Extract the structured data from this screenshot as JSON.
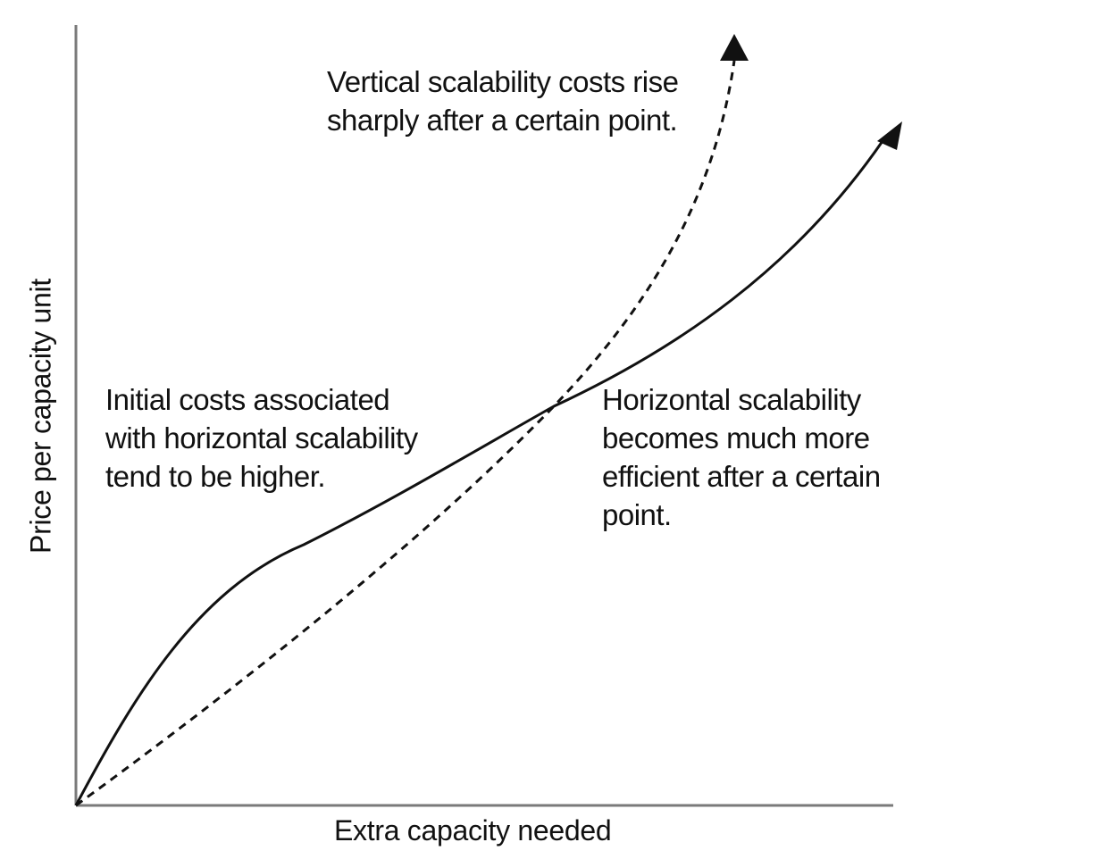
{
  "axes": {
    "x_label": "Extra capacity needed",
    "y_label": "Price per capacity unit"
  },
  "annotations": {
    "vertical": {
      "line1": "Vertical scalability costs rise",
      "line2": "sharply after a certain point."
    },
    "horizontal_initial": {
      "line1": "Initial costs associated",
      "line2": "with horizontal scalability",
      "line3": "tend to be higher."
    },
    "horizontal_efficient": {
      "line1": "Horizontal scalability",
      "line2": "becomes much more",
      "line3": "efficient after a certain",
      "line4": "point."
    }
  },
  "curves": {
    "horizontal": {
      "style": "solid",
      "color": "#111111"
    },
    "vertical": {
      "style": "dashed",
      "color": "#111111"
    }
  },
  "axis_color": "#7a7a7a"
}
